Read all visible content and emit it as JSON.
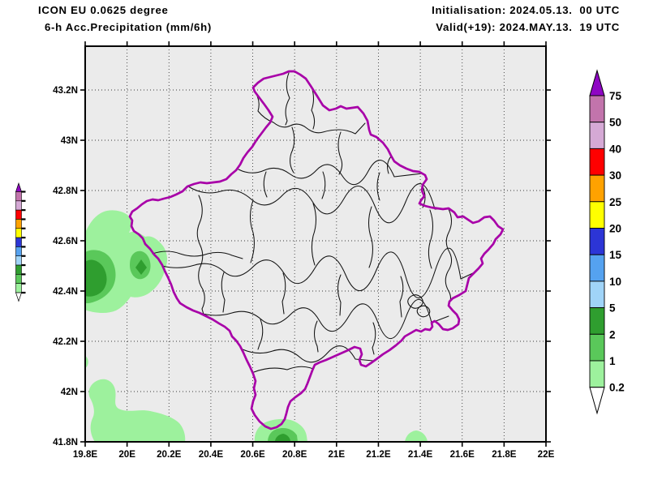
{
  "header": {
    "model_line": "ICON EU 0.0625 degree",
    "param_line": "6-h Acc.Precipitation (mm/6h)",
    "initialisation_line": "Initialisation: 2024.05.13.  00 UTC",
    "valid_line": "Valid(+19): 2024.MAY.13.  19 UTC"
  },
  "axes": {
    "lon_ticks": [
      {
        "label": "19.8E",
        "value": 19.8
      },
      {
        "label": "20E",
        "value": 20.0
      },
      {
        "label": "20.2E",
        "value": 20.2
      },
      {
        "label": "20.4E",
        "value": 20.4
      },
      {
        "label": "20.6E",
        "value": 20.6
      },
      {
        "label": "20.8E",
        "value": 20.8
      },
      {
        "label": "21E",
        "value": 21.0
      },
      {
        "label": "21.2E",
        "value": 21.2
      },
      {
        "label": "21.4E",
        "value": 21.4
      },
      {
        "label": "21.6E",
        "value": 21.6
      },
      {
        "label": "21.8E",
        "value": 21.8
      },
      {
        "label": "22E",
        "value": 22.0
      }
    ],
    "lat_ticks": [
      {
        "label": "41.8N",
        "value": 41.8
      },
      {
        "label": "42N",
        "value": 42.0
      },
      {
        "label": "42.2N",
        "value": 42.2
      },
      {
        "label": "42.4N",
        "value": 42.4
      },
      {
        "label": "42.6N",
        "value": 42.6
      },
      {
        "label": "42.8N",
        "value": 42.8
      },
      {
        "label": "43N",
        "value": 43.0
      },
      {
        "label": "43.2N",
        "value": 43.2
      }
    ]
  },
  "colorbar": {
    "levels": [
      "75",
      "50",
      "40",
      "30",
      "25",
      "20",
      "15",
      "10",
      "5",
      "2",
      "1",
      "0.2"
    ],
    "band_colors": [
      "#c274ac",
      "#d5a9d5",
      "#ff0000",
      "#ffa200",
      "#ffff00",
      "#2c35d6",
      "#55a2f0",
      "#a0d4f8",
      "#2f9e2f",
      "#5ac85a",
      "#9df19d"
    ],
    "over_color": "#8f06c4",
    "under_color": "#ffffff"
  },
  "map_colors": {
    "background": "#ebebeb",
    "country_border": "#a800a8",
    "district_border": "#111111",
    "precip_light": "#9df19d",
    "precip_medium": "#5ac85a",
    "precip_dark": "#2f9e2f"
  },
  "precip_levels_mm": {
    "light": "0.2-1",
    "medium": "1-2",
    "dark": "2-5"
  }
}
